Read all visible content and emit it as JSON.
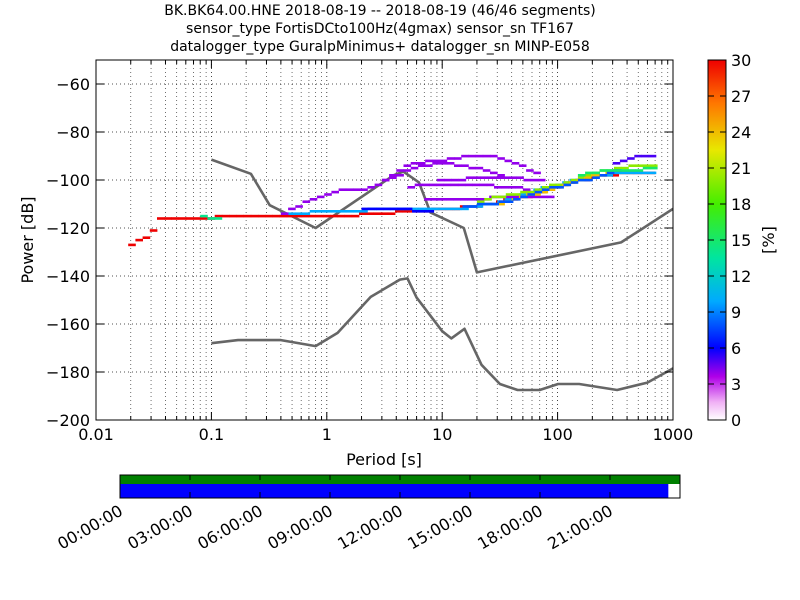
{
  "header": {
    "title_line1": "BK.BK64.00.HNE   2018-08-19 -- 2018-08-19  (46/46 segments)",
    "title_line2": "sensor_type FortisDCto100Hz(4gmax) sensor_sn TF167",
    "title_line3": "datalogger_type GuralpMinimus+ datalogger_sn MINP-E058"
  },
  "chart_data": {
    "type": "heatmap",
    "xlabel": "Period [s]",
    "ylabel": "Power [dB]",
    "x_scale": "log",
    "xlim": [
      0.01,
      1000
    ],
    "ylim": [
      -200,
      -50
    ],
    "x_ticks": [
      {
        "value": 0.01,
        "label": "0.01"
      },
      {
        "value": 0.1,
        "label": "0.1"
      },
      {
        "value": 1,
        "label": "1"
      },
      {
        "value": 10,
        "label": "10"
      },
      {
        "value": 100,
        "label": "100"
      },
      {
        "value": 1000,
        "label": "1000"
      }
    ],
    "y_ticks": [
      {
        "value": -200,
        "label": "−200"
      },
      {
        "value": -180,
        "label": "−180"
      },
      {
        "value": -160,
        "label": "−160"
      },
      {
        "value": -140,
        "label": "−140"
      },
      {
        "value": -120,
        "label": "−120"
      },
      {
        "value": -100,
        "label": "−100"
      },
      {
        "value": -80,
        "label": "−80"
      },
      {
        "value": -60,
        "label": "−60"
      }
    ],
    "grid": true,
    "colorbar": {
      "label": "[%]",
      "min": 0,
      "max": 30,
      "ticks": [
        {
          "value": 0,
          "label": "0"
        },
        {
          "value": 3,
          "label": "3"
        },
        {
          "value": 6,
          "label": "6"
        },
        {
          "value": 9,
          "label": "9"
        },
        {
          "value": 12,
          "label": "12"
        },
        {
          "value": 15,
          "label": "15"
        },
        {
          "value": 18,
          "label": "18"
        },
        {
          "value": 21,
          "label": "21"
        },
        {
          "value": 24,
          "label": "24"
        },
        {
          "value": 27,
          "label": "27"
        },
        {
          "value": 30,
          "label": "30"
        }
      ]
    },
    "noise_models": [
      {
        "points": [
          [
            0.1,
            -91.5
          ],
          [
            0.22,
            -97.4
          ],
          [
            0.32,
            -110.5
          ],
          [
            0.8,
            -120
          ],
          [
            3.8,
            -98
          ],
          [
            4.6,
            -96.5
          ],
          [
            6.3,
            -101
          ],
          [
            7.9,
            -113.5
          ],
          [
            15.4,
            -120
          ],
          [
            20,
            -138.5
          ],
          [
            354.8,
            -126
          ],
          [
            1000,
            -112
          ]
        ]
      },
      {
        "points": [
          [
            0.1,
            -168
          ],
          [
            0.17,
            -166.7
          ],
          [
            0.4,
            -166.7
          ],
          [
            0.8,
            -169.2
          ],
          [
            1.24,
            -163.7
          ],
          [
            2.4,
            -148.7
          ],
          [
            4.3,
            -141.5
          ],
          [
            5,
            -141
          ],
          [
            6,
            -149
          ],
          [
            10,
            -163
          ],
          [
            12,
            -166
          ],
          [
            15.6,
            -162
          ],
          [
            21.9,
            -177
          ],
          [
            31.6,
            -185
          ],
          [
            45,
            -187.5
          ],
          [
            70,
            -187.5
          ],
          [
            101,
            -185
          ],
          [
            154,
            -185
          ],
          [
            328,
            -187.5
          ],
          [
            600,
            -184.4
          ],
          [
            1000,
            -178.5
          ]
        ]
      }
    ],
    "series": [
      {
        "percent": 30,
        "points": [
          [
            0.019,
            -127
          ],
          [
            0.021,
            -125
          ],
          [
            0.025,
            -123.8
          ],
          [
            0.029,
            -121.5
          ],
          [
            0.033,
            -116
          ],
          [
            0.1,
            -115.5
          ],
          [
            1,
            -115
          ],
          [
            3,
            -114
          ],
          [
            5,
            -113
          ],
          [
            10,
            -112
          ],
          [
            20,
            -110.5
          ],
          [
            50,
            -107
          ],
          [
            100,
            -102.5
          ],
          [
            200,
            -98.5
          ],
          [
            400,
            -97
          ],
          [
            650,
            -96.5
          ]
        ]
      },
      {
        "percent": 10,
        "points": [
          [
            0.4,
            -114
          ],
          [
            2,
            -112.5
          ],
          [
            5,
            -112
          ],
          [
            8,
            -112
          ],
          [
            15,
            -111.5
          ],
          [
            25,
            -110
          ],
          [
            45,
            -106
          ],
          [
            90,
            -102
          ],
          [
            180,
            -98.5
          ],
          [
            350,
            -97
          ],
          [
            650,
            -96.5
          ]
        ]
      },
      {
        "percent": 4,
        "points": [
          [
            0.4,
            -113.5
          ],
          [
            0.7,
            -108
          ],
          [
            1.2,
            -104.5
          ],
          [
            2,
            -103.5
          ],
          [
            2.7,
            -101.5
          ],
          [
            4,
            -96
          ],
          [
            5,
            -93
          ],
          [
            9,
            -92
          ],
          [
            12,
            -91
          ],
          [
            16,
            -90
          ],
          [
            26,
            -89.5
          ],
          [
            40,
            -93
          ],
          [
            65,
            -98
          ]
        ]
      },
      {
        "percent": 4,
        "points": [
          [
            3,
            -100
          ],
          [
            6,
            -94
          ],
          [
            10,
            -93
          ],
          [
            20,
            -95
          ],
          [
            30,
            -97.5
          ]
        ]
      },
      {
        "percent": 4,
        "points": [
          [
            5,
            -102.5
          ],
          [
            8,
            -101.5
          ],
          [
            15,
            -102
          ],
          [
            25,
            -102.5
          ],
          [
            40,
            -103
          ],
          [
            55,
            -104.5
          ]
        ]
      },
      {
        "percent": 4,
        "points": [
          [
            9,
            -100
          ],
          [
            15,
            -99.5
          ],
          [
            28,
            -99
          ],
          [
            45,
            -99.5
          ],
          [
            70,
            -100
          ]
        ]
      },
      {
        "percent": 4,
        "points": [
          [
            7,
            -108
          ],
          [
            15,
            -107.5
          ],
          [
            25,
            -107.5
          ],
          [
            50,
            -107
          ],
          [
            85,
            -107.5
          ]
        ]
      },
      {
        "percent": 6,
        "points": [
          [
            2,
            -111.5
          ],
          [
            5,
            -112.5
          ],
          [
            8,
            -113.5
          ]
        ]
      },
      {
        "percent": 5,
        "points": [
          [
            300,
            -92.5
          ],
          [
            500,
            -89.5
          ],
          [
            650,
            -89.5
          ]
        ]
      },
      {
        "percent": 14,
        "points": [
          [
            0.08,
            -115.3
          ],
          [
            0.11,
            -116
          ]
        ]
      },
      {
        "percent": 20,
        "points": [
          [
            20,
            -108.5
          ],
          [
            50,
            -105
          ],
          [
            100,
            -101.5
          ],
          [
            200,
            -97
          ],
          [
            400,
            -94.5
          ],
          [
            650,
            -94
          ]
        ]
      },
      {
        "percent": 24,
        "points": [
          [
            30,
            -110
          ],
          [
            80,
            -104
          ],
          [
            150,
            -100
          ],
          [
            300,
            -96
          ]
        ]
      },
      {
        "percent": 8,
        "points": [
          [
            15,
            -111
          ],
          [
            40,
            -108.5
          ],
          [
            80,
            -103.5
          ],
          [
            160,
            -100
          ],
          [
            330,
            -95.5
          ]
        ]
      },
      {
        "percent": 15,
        "points": [
          [
            150,
            -97.5
          ],
          [
            250,
            -96
          ],
          [
            500,
            -95.5
          ],
          [
            650,
            -95
          ]
        ]
      }
    ]
  },
  "timeline": {
    "labels": [
      "00:00:00",
      "03:00:00",
      "06:00:00",
      "09:00:00",
      "12:00:00",
      "15:00:00",
      "18:00:00",
      "21:00:00"
    ],
    "hours": [
      0,
      3,
      6,
      9,
      12,
      15,
      18,
      21
    ],
    "start_hour": 0,
    "end_hour": 24,
    "coverage_start_hour": 0,
    "coverage_end_hour": 23.5,
    "data_color": "#0000ff",
    "availability_color": "#008000",
    "gap_color": "#ffffff"
  }
}
